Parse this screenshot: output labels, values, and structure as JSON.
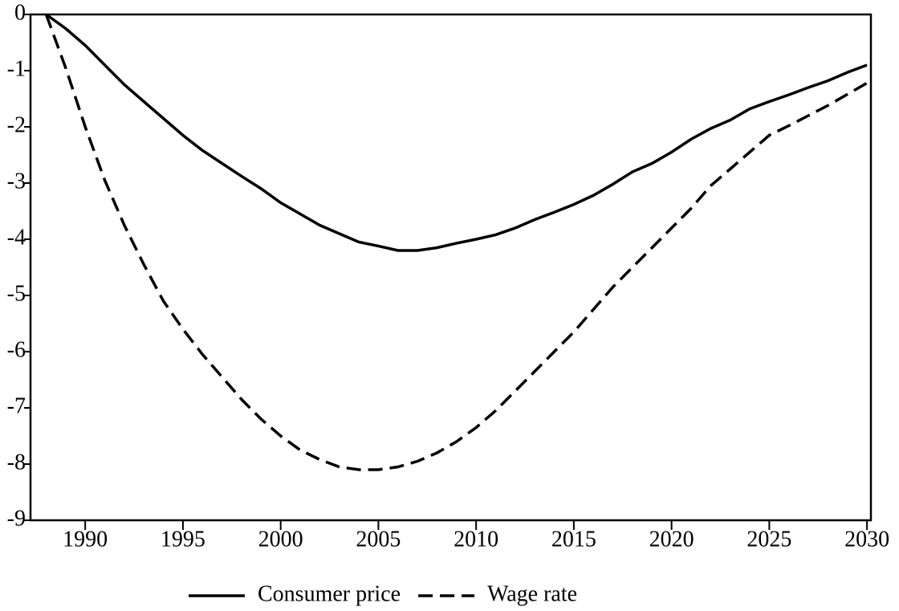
{
  "chart_data": {
    "type": "line",
    "x": [
      1988,
      1989,
      1990,
      1991,
      1992,
      1993,
      1994,
      1995,
      1996,
      1997,
      1998,
      1999,
      2000,
      2001,
      2002,
      2003,
      2004,
      2005,
      2006,
      2007,
      2008,
      2009,
      2010,
      2011,
      2012,
      2013,
      2014,
      2015,
      2016,
      2017,
      2018,
      2019,
      2020,
      2021,
      2022,
      2023,
      2024,
      2025,
      2026,
      2027,
      2028,
      2029,
      2030
    ],
    "series": [
      {
        "name": "Consumer price",
        "color": "#000000",
        "dash": "solid",
        "values": [
          0,
          -0.25,
          -0.55,
          -0.9,
          -1.25,
          -1.55,
          -1.85,
          -2.15,
          -2.42,
          -2.65,
          -2.88,
          -3.1,
          -3.35,
          -3.55,
          -3.75,
          -3.9,
          -4.05,
          -4.12,
          -4.2,
          -4.2,
          -4.15,
          -4.07,
          -4.0,
          -3.92,
          -3.8,
          -3.65,
          -3.52,
          -3.38,
          -3.22,
          -3.02,
          -2.8,
          -2.65,
          -2.45,
          -2.22,
          -2.03,
          -1.88,
          -1.68,
          -1.55,
          -1.43,
          -1.3,
          -1.18,
          -1.03,
          -0.9
        ]
      },
      {
        "name": "Wage rate",
        "color": "#000000",
        "dash": "dashed",
        "values": [
          0,
          -0.95,
          -2.0,
          -2.95,
          -3.75,
          -4.45,
          -5.1,
          -5.6,
          -6.05,
          -6.45,
          -6.85,
          -7.2,
          -7.5,
          -7.75,
          -7.92,
          -8.05,
          -8.1,
          -8.1,
          -8.05,
          -7.95,
          -7.8,
          -7.6,
          -7.35,
          -7.05,
          -6.7,
          -6.35,
          -6.0,
          -5.65,
          -5.25,
          -4.85,
          -4.5,
          -4.15,
          -3.8,
          -3.45,
          -3.05,
          -2.75,
          -2.45,
          -2.15,
          -1.98,
          -1.8,
          -1.62,
          -1.42,
          -1.22
        ]
      }
    ],
    "xlim": [
      1987.2,
      2030.2
    ],
    "xticks": [
      1990,
      1995,
      2000,
      2005,
      2010,
      2015,
      2020,
      2025,
      2030
    ],
    "ylim": [
      -9,
      0
    ],
    "yticks": [
      0,
      -1,
      -2,
      -3,
      -4,
      -5,
      -6,
      -7,
      -8,
      -9
    ],
    "grid": false,
    "legend": "bottom"
  }
}
